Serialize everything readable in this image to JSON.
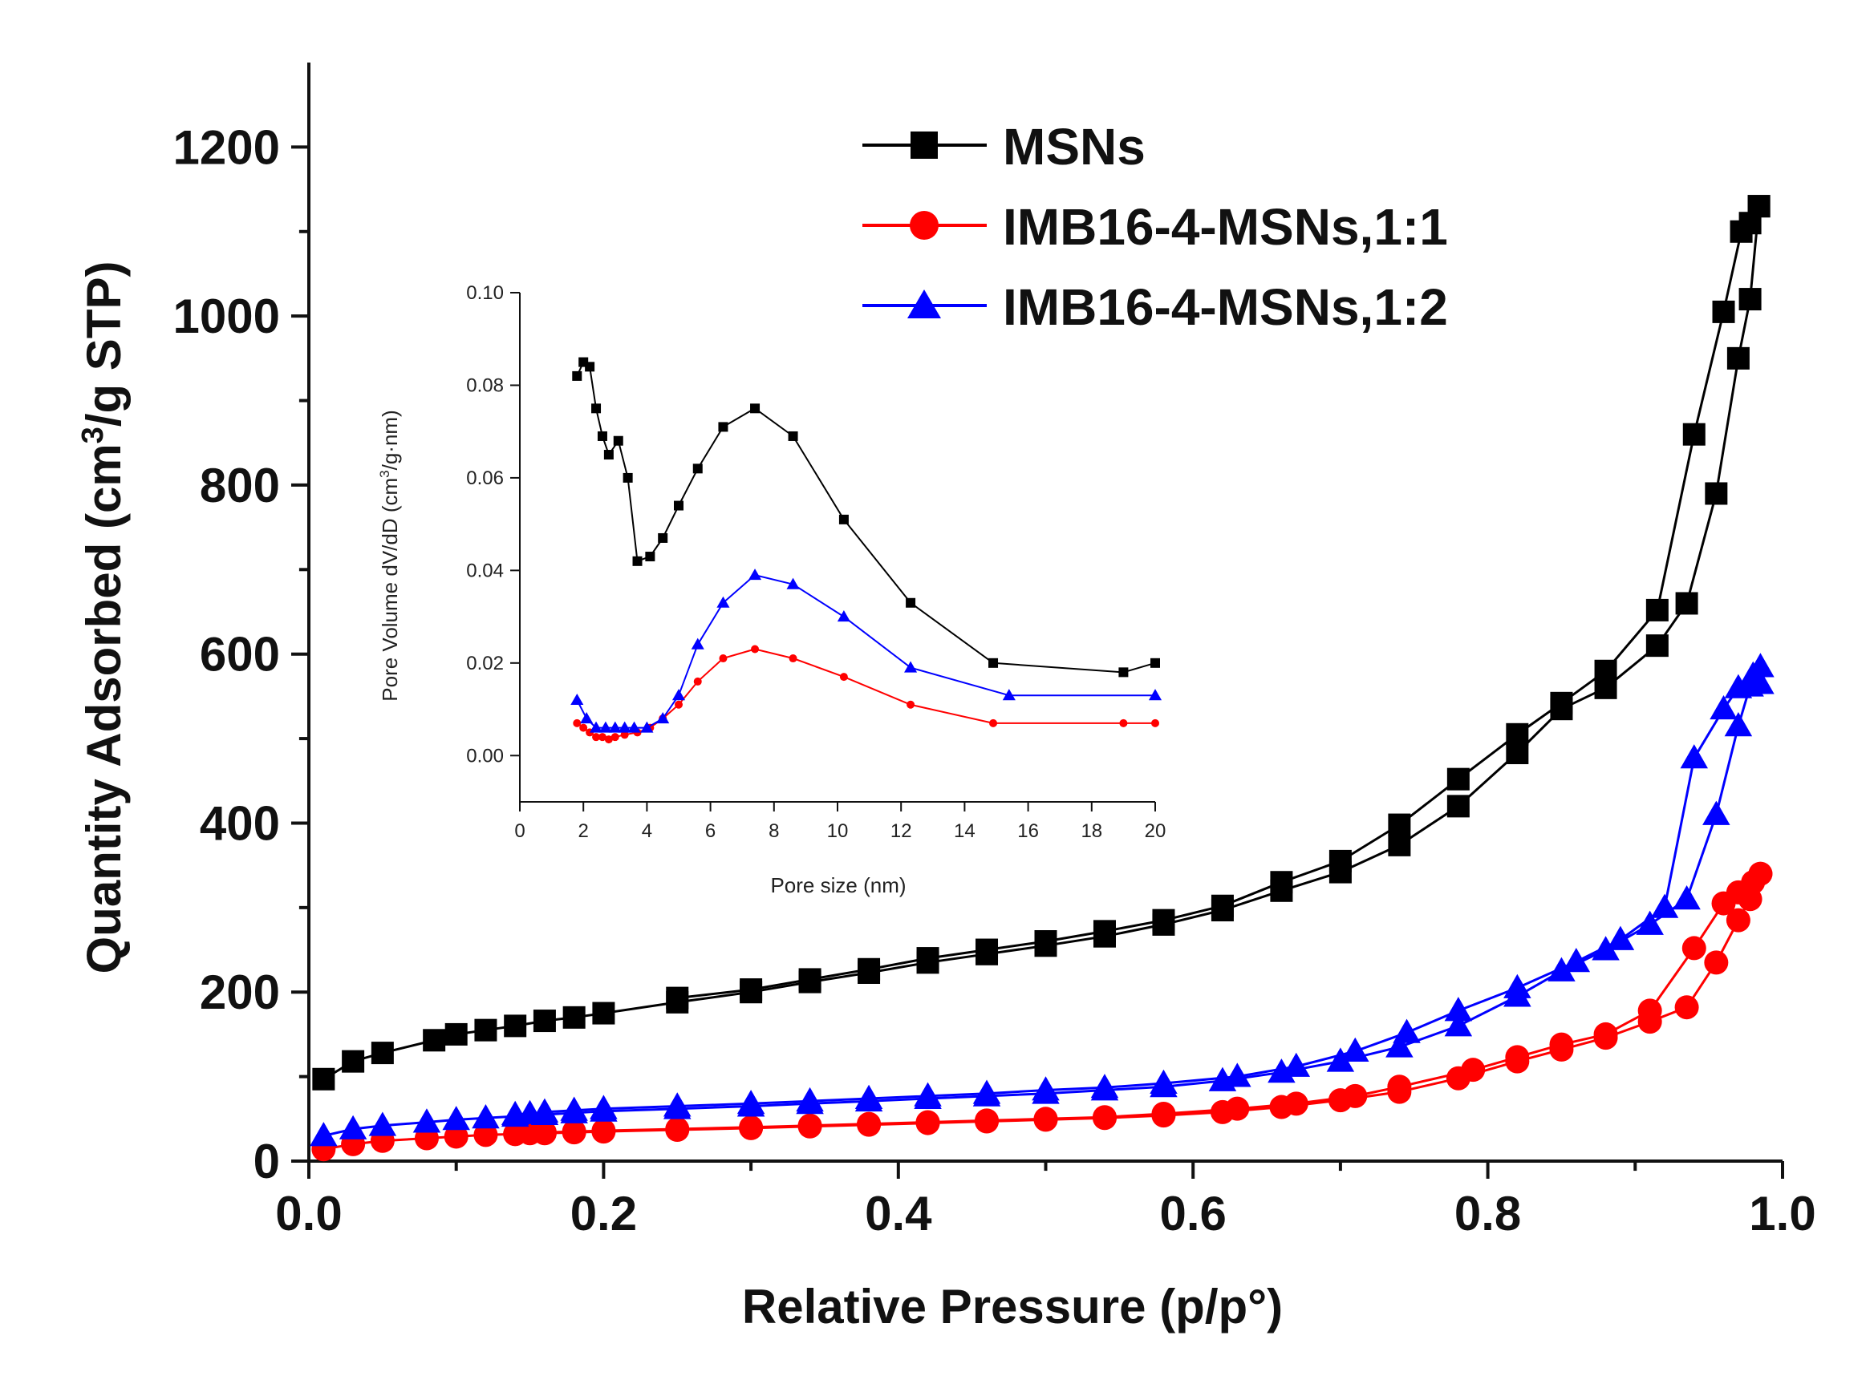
{
  "chart_data": [
    {
      "id": "main",
      "type": "line",
      "title": "",
      "xlabel": "Relative Pressure (p/p°)",
      "ylabel_main": "Quantity Adsorbed (cm",
      "ylabel_sup": "3",
      "ylabel_tail": "/g STP)",
      "xlim": [
        0.0,
        1.0
      ],
      "ylim": [
        0,
        1300
      ],
      "xticks": [
        0.0,
        0.2,
        0.4,
        0.6,
        0.8,
        1.0
      ],
      "xtick_labels": [
        "0.0",
        "0.2",
        "0.4",
        "0.6",
        "0.8",
        "1.0"
      ],
      "yticks": [
        0,
        200,
        400,
        600,
        800,
        1000,
        1200
      ],
      "ytick_labels": [
        "0",
        "200",
        "400",
        "600",
        "800",
        "1000",
        "1200"
      ],
      "legend_position": "top-right",
      "series": [
        {
          "name": "MSNs",
          "color": "#000000",
          "marker": "square",
          "adsorption": {
            "x": [
              0.01,
              0.03,
              0.05,
              0.085,
              0.1,
              0.12,
              0.14,
              0.16,
              0.18,
              0.2,
              0.25,
              0.3,
              0.34,
              0.38,
              0.42,
              0.46,
              0.5,
              0.54,
              0.58,
              0.62,
              0.66,
              0.7,
              0.74,
              0.78,
              0.82,
              0.85,
              0.88,
              0.915,
              0.935,
              0.955,
              0.97,
              0.978,
              0.984
            ],
            "y": [
              97,
              118,
              128,
              143,
              150,
              155,
              160,
              166,
              170,
              175,
              188,
              200,
              212,
              223,
              235,
              245,
              255,
              266,
              280,
              297,
              320,
              342,
              374,
              420,
              483,
              535,
              560,
              610,
              660,
              790,
              950,
              1020,
              1130
            ]
          },
          "desorption": {
            "x": [
              0.984,
              0.978,
              0.972,
              0.96,
              0.94,
              0.915,
              0.88,
              0.85,
              0.82,
              0.78,
              0.74,
              0.7,
              0.66,
              0.62,
              0.58,
              0.54,
              0.5,
              0.46,
              0.42,
              0.38,
              0.34,
              0.3,
              0.25
            ],
            "y": [
              1130,
              1110,
              1100,
              1005,
              860,
              652,
              580,
              542,
              505,
              452,
              398,
              355,
              330,
              302,
              285,
              272,
              260,
              250,
              240,
              227,
              215,
              203,
              193
            ]
          }
        },
        {
          "name": "IMB16-4-MSNs,1:1",
          "color": "#ff0000",
          "marker": "circle",
          "adsorption": {
            "x": [
              0.01,
              0.03,
              0.05,
              0.08,
              0.1,
              0.12,
              0.14,
              0.16,
              0.18,
              0.2,
              0.25,
              0.3,
              0.34,
              0.38,
              0.42,
              0.46,
              0.5,
              0.54,
              0.58,
              0.62,
              0.66,
              0.7,
              0.74,
              0.78,
              0.82,
              0.85,
              0.88,
              0.91,
              0.935,
              0.955,
              0.97,
              0.978,
              0.985
            ],
            "y": [
              14,
              20,
              24,
              27,
              29,
              31,
              32,
              33,
              34,
              35,
              37,
              39,
              41,
              43,
              45,
              47,
              49,
              51,
              54,
              58,
              64,
              72,
              82,
              98,
              118,
              132,
              146,
              165,
              182,
              235,
              285,
              310,
              340
            ]
          },
          "desorption": {
            "x": [
              0.985,
              0.98,
              0.97,
              0.96,
              0.94,
              0.91,
              0.88,
              0.85,
              0.82,
              0.79,
              0.74,
              0.71,
              0.67,
              0.63,
              0.58,
              0.54,
              0.5,
              0.46,
              0.42,
              0.38,
              0.34,
              0.3,
              0.25,
              0.2,
              0.18,
              0.16,
              0.15,
              0.14
            ],
            "y": [
              340,
              330,
              318,
              305,
              252,
              178,
              150,
              138,
              123,
              108,
              88,
              77,
              68,
              62,
              56,
              52,
              50,
              48,
              46,
              44,
              42,
              40,
              38,
              36,
              35,
              34,
              33,
              32
            ]
          }
        },
        {
          "name": "IMB16-4-MSNs,1:2",
          "color": "#0000ff",
          "marker": "triangle",
          "adsorption": {
            "x": [
              0.01,
              0.03,
              0.05,
              0.08,
              0.1,
              0.12,
              0.14,
              0.16,
              0.18,
              0.2,
              0.25,
              0.3,
              0.34,
              0.38,
              0.42,
              0.46,
              0.5,
              0.54,
              0.58,
              0.62,
              0.66,
              0.7,
              0.74,
              0.78,
              0.82,
              0.85,
              0.88,
              0.91,
              0.935,
              0.955,
              0.97,
              0.978,
              0.985
            ],
            "y": [
              30,
              38,
              42,
              46,
              49,
              51,
              53,
              55,
              57,
              59,
              62,
              65,
              68,
              71,
              74,
              77,
              80,
              84,
              88,
              95,
              105,
              118,
              135,
              160,
              195,
              225,
              250,
              280,
              310,
              410,
              515,
              562,
              565
            ]
          },
          "desorption": {
            "x": [
              0.985,
              0.98,
              0.97,
              0.96,
              0.94,
              0.92,
              0.89,
              0.86,
              0.82,
              0.78,
              0.745,
              0.71,
              0.67,
              0.63,
              0.58,
              0.54,
              0.5,
              0.46,
              0.42,
              0.38,
              0.34,
              0.3,
              0.25,
              0.2,
              0.18,
              0.16,
              0.15,
              0.14
            ],
            "y": [
              585,
              575,
              560,
              535,
              477,
              300,
              262,
              236,
              205,
              178,
              152,
              130,
              112,
              100,
              92,
              87,
              84,
              80,
              77,
              74,
              71,
              68,
              65,
              62,
              60,
              58,
              56,
              55
            ]
          }
        }
      ]
    },
    {
      "id": "inset",
      "type": "line",
      "title": "",
      "xlabel": "Pore size (nm)",
      "ylabel_main": "Pore Volume dV/dD (cm",
      "ylabel_sup": "3",
      "ylabel_tail": "/g·nm)",
      "xlim": [
        0,
        20
      ],
      "ylim": [
        -0.01,
        0.1
      ],
      "xticks": [
        0,
        2,
        4,
        6,
        8,
        10,
        12,
        14,
        16,
        18,
        20
      ],
      "xtick_labels": [
        "0",
        "2",
        "4",
        "6",
        "8",
        "10",
        "12",
        "14",
        "16",
        "18",
        "20"
      ],
      "yticks": [
        0.0,
        0.02,
        0.04,
        0.06,
        0.08,
        0.1
      ],
      "ytick_labels": [
        "0.00",
        "0.02",
        "0.04",
        "0.06",
        "0.08",
        "0.10"
      ],
      "series": [
        {
          "name": "MSNs",
          "color": "#000000",
          "marker": "square",
          "x": [
            1.8,
            2.0,
            2.2,
            2.4,
            2.6,
            2.8,
            3.1,
            3.4,
            3.7,
            4.1,
            4.5,
            5.0,
            5.6,
            6.4,
            7.4,
            8.6,
            10.2,
            12.3,
            14.9,
            19.0,
            20.0
          ],
          "y": [
            0.082,
            0.085,
            0.084,
            0.075,
            0.069,
            0.065,
            0.068,
            0.06,
            0.042,
            0.043,
            0.047,
            0.054,
            0.062,
            0.071,
            0.075,
            0.069,
            0.051,
            0.033,
            0.02,
            0.018,
            0.02
          ]
        },
        {
          "name": "IMB16-4-MSNs,1:1",
          "color": "#ff0000",
          "marker": "circle",
          "x": [
            1.8,
            2.0,
            2.2,
            2.4,
            2.6,
            2.8,
            3.0,
            3.3,
            3.7,
            4.1,
            4.5,
            5.0,
            5.6,
            6.4,
            7.4,
            8.6,
            10.2,
            12.3,
            14.9,
            19.0,
            20.0
          ],
          "y": [
            0.007,
            0.006,
            0.005,
            0.004,
            0.004,
            0.0035,
            0.004,
            0.0045,
            0.005,
            0.006,
            0.008,
            0.011,
            0.016,
            0.021,
            0.023,
            0.021,
            0.017,
            0.011,
            0.007,
            0.007,
            0.007
          ]
        },
        {
          "name": "IMB16-4-MSNs,1:2",
          "color": "#0000ff",
          "marker": "triangle",
          "x": [
            1.8,
            2.1,
            2.4,
            2.7,
            3.0,
            3.3,
            3.6,
            4.0,
            4.5,
            5.0,
            5.6,
            6.4,
            7.4,
            8.6,
            10.2,
            12.3,
            15.4,
            20.0
          ],
          "y": [
            0.012,
            0.008,
            0.006,
            0.006,
            0.006,
            0.006,
            0.006,
            0.006,
            0.008,
            0.013,
            0.024,
            0.033,
            0.039,
            0.037,
            0.03,
            0.019,
            0.013,
            0.013
          ]
        }
      ]
    }
  ]
}
